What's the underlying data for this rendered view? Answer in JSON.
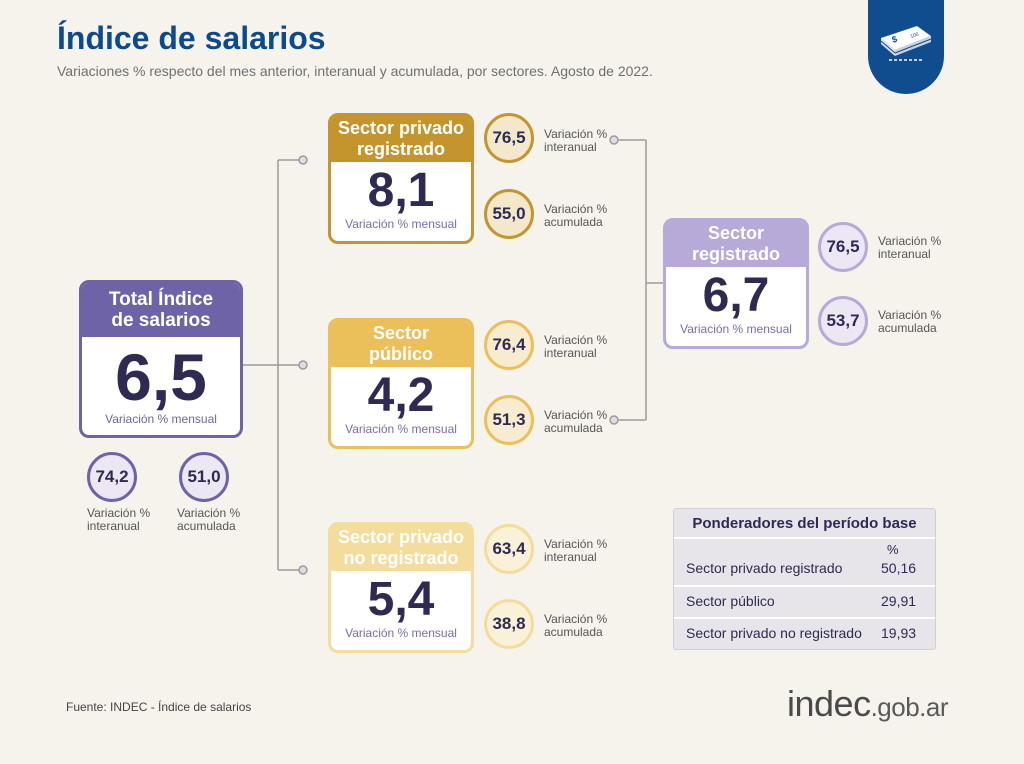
{
  "title": "Índice de salarios",
  "subtitle": "Variaciones % respecto del mes anterior, interanual y acumulada, por sectores. Agosto de 2022.",
  "logo_icon": "money-stack-icon",
  "colors": {
    "title": "#0b4a8f",
    "total": "#6f63a8",
    "privado_registrado": "#c4952c",
    "publico": "#ebbf5a",
    "no_registrado": "#f3dc9c",
    "registrado": "#b7a9d8"
  },
  "labels": {
    "mensual": "Variación % mensual",
    "interanual_1": "Variación %",
    "interanual_2": "interanual",
    "acumulada_1": "Variación %",
    "acumulada_2": "acumulada"
  },
  "total": {
    "title_1": "Total Índice",
    "title_2": "de salarios",
    "mensual": "6,5",
    "interanual": "74,2",
    "acumulada": "51,0"
  },
  "privado_registrado": {
    "title_1": "Sector privado",
    "title_2": "registrado",
    "mensual": "8,1",
    "interanual": "76,5",
    "acumulada": "55,0"
  },
  "publico": {
    "title_1": "Sector",
    "title_2": "público",
    "mensual": "4,2",
    "interanual": "76,4",
    "acumulada": "51,3"
  },
  "no_registrado": {
    "title_1": "Sector privado",
    "title_2": "no registrado",
    "mensual": "5,4",
    "interanual": "63,4",
    "acumulada": "38,8"
  },
  "registrado": {
    "title_1": "Sector",
    "title_2": "registrado",
    "mensual": "6,7",
    "interanual": "76,5",
    "acumulada": "53,7"
  },
  "ponderadores": {
    "title": "Ponderadores del período base",
    "unit": "%",
    "rows": [
      {
        "name": "Sector privado registrado",
        "value": "50,16"
      },
      {
        "name": "Sector público",
        "value": "29,91"
      },
      {
        "name": "Sector privado no registrado",
        "value": "19,93"
      }
    ]
  },
  "source": "Fuente: INDEC - Índice de salarios",
  "brand": {
    "main": "indec",
    "suffix": ".gob.ar"
  }
}
